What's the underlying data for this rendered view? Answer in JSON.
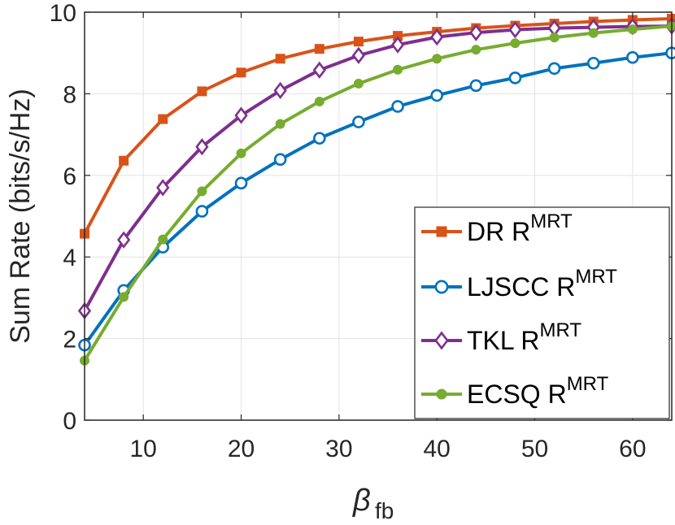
{
  "chart_data": {
    "type": "line",
    "title": "",
    "xlabel": {
      "base": "β",
      "sub": "fb"
    },
    "ylabel": "Sum Rate (bits/s/Hz)",
    "xlim": [
      4,
      64
    ],
    "ylim": [
      0,
      10
    ],
    "xticks": [
      10,
      20,
      30,
      40,
      50,
      60
    ],
    "yticks": [
      0,
      2,
      4,
      6,
      8,
      10
    ],
    "xtick_labels": [
      "10",
      "20",
      "30",
      "40",
      "50",
      "60"
    ],
    "ytick_labels": [
      "0",
      "2",
      "4",
      "6",
      "8",
      "10"
    ],
    "grid": true,
    "legend_position": "bottom-right",
    "x": [
      4,
      8,
      12,
      16,
      20,
      24,
      28,
      32,
      36,
      40,
      44,
      48,
      52,
      56,
      60,
      64
    ],
    "series": [
      {
        "name": "DR R",
        "name_sup": "MRT",
        "color": "#D95319",
        "marker": "square",
        "values": [
          4.57,
          6.36,
          7.38,
          8.06,
          8.52,
          8.86,
          9.1,
          9.28,
          9.42,
          9.52,
          9.61,
          9.67,
          9.72,
          9.77,
          9.81,
          9.84
        ]
      },
      {
        "name": "LJSCC R",
        "name_sup": "MRT",
        "color": "#0072BD",
        "marker": "circle",
        "values": [
          1.84,
          3.18,
          4.24,
          5.12,
          5.81,
          6.39,
          6.91,
          7.31,
          7.69,
          7.96,
          8.2,
          8.39,
          8.62,
          8.75,
          8.89,
          9.0
        ]
      },
      {
        "name": "TKL R",
        "name_sup": "MRT",
        "color": "#7E2F8E",
        "marker": "diamond",
        "values": [
          2.68,
          4.42,
          5.7,
          6.7,
          7.47,
          8.08,
          8.58,
          8.94,
          9.2,
          9.39,
          9.5,
          9.57,
          9.61,
          9.63,
          9.65,
          9.66
        ]
      },
      {
        "name": "ECSQ R",
        "name_sup": "MRT",
        "color": "#77AC30",
        "marker": "dot",
        "values": [
          1.46,
          3.02,
          4.43,
          5.61,
          6.54,
          7.26,
          7.81,
          8.25,
          8.59,
          8.86,
          9.08,
          9.24,
          9.38,
          9.49,
          9.58,
          9.66
        ]
      }
    ]
  }
}
